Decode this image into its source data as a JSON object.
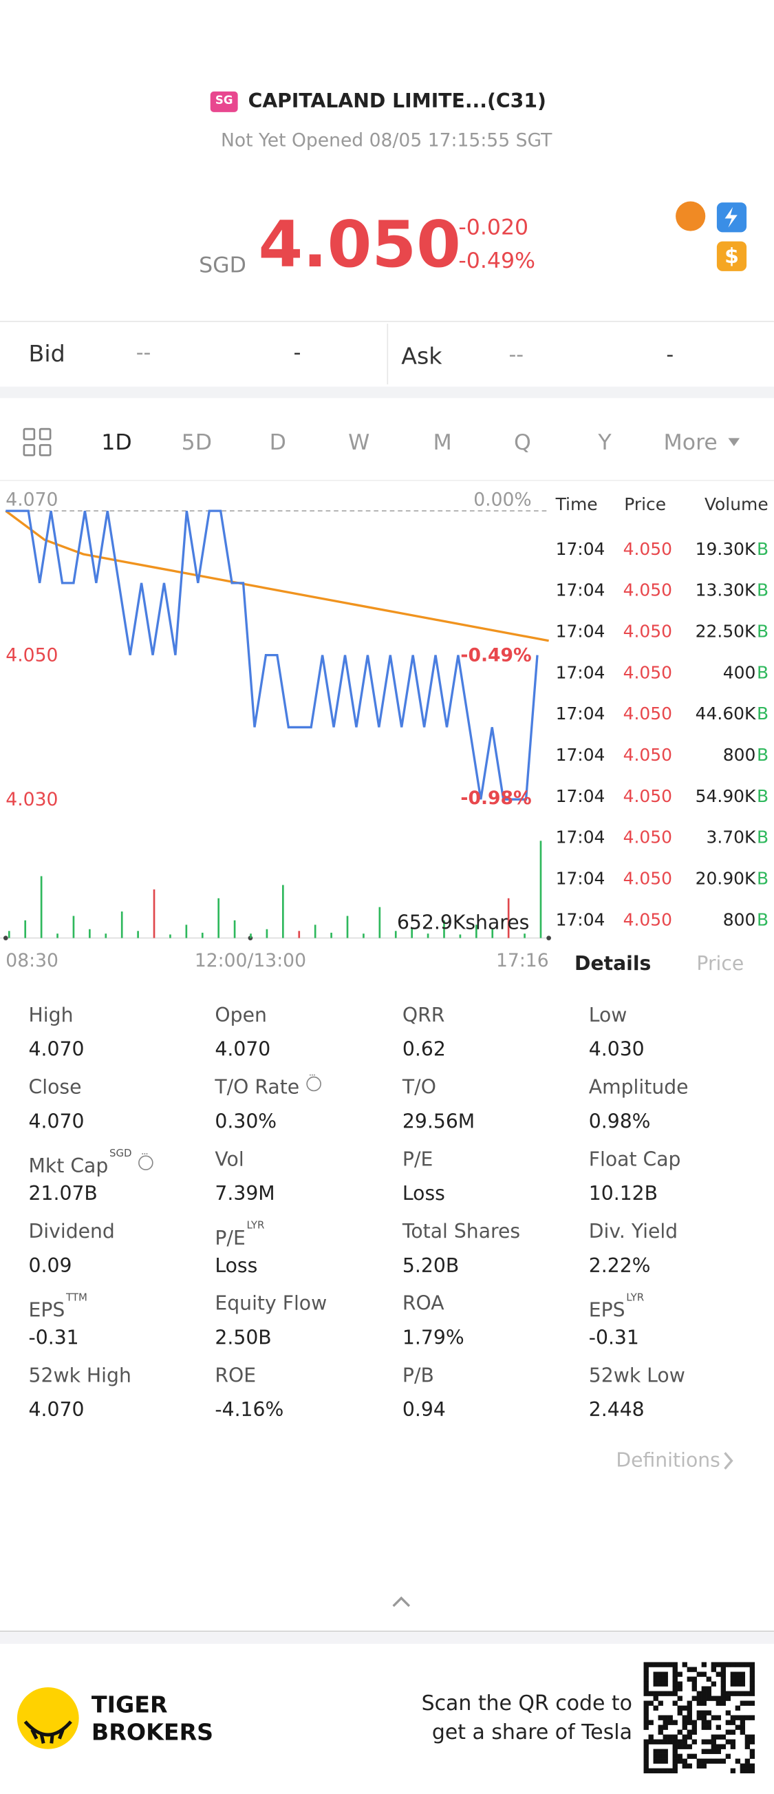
{
  "header": {
    "badge": "SG",
    "title": "CAPITALAND LIMITE...(C31)",
    "status": "Not Yet Opened 08/05 17:15:55 SGT"
  },
  "quote": {
    "currency": "SGD",
    "price": "4.050",
    "change": "-0.020",
    "change_pct": "-0.49%"
  },
  "order_book": {
    "bid": {
      "label": "Bid",
      "price": "--",
      "size": "-"
    },
    "ask": {
      "label": "Ask",
      "price": "--",
      "size": "-"
    }
  },
  "period_tabs": [
    "1D",
    "5D",
    "D",
    "W",
    "M",
    "Q",
    "Y",
    "More"
  ],
  "chart_data": {
    "type": "line",
    "ylim": [
      4.026,
      4.072
    ],
    "yticks": [
      {
        "value": 4.07,
        "label": "4.070"
      },
      {
        "value": 4.05,
        "label": "4.050"
      },
      {
        "value": 4.03,
        "label": "4.030"
      }
    ],
    "y2lim": [
      -1.081,
      0.049
    ],
    "y2ticks": [
      {
        "value": 0,
        "label": "0.00%"
      },
      {
        "value": -0.49,
        "label": "-0.49%"
      },
      {
        "value": -0.98,
        "label": "-0.98%"
      }
    ],
    "x_labels": [
      "08:30",
      "12:00/13:00",
      "17:16"
    ],
    "series": [
      {
        "color": "#4a7ee0",
        "values": [
          4.07,
          4.07,
          4.07,
          4.06,
          4.07,
          4.06,
          4.06,
          4.07,
          4.06,
          4.07,
          4.06,
          4.05,
          4.06,
          4.05,
          4.06,
          4.05,
          4.07,
          4.06,
          4.07,
          4.07,
          4.06,
          4.06,
          4.04,
          4.05,
          4.05,
          4.04,
          4.04,
          4.04,
          4.05,
          4.04,
          4.05,
          4.04,
          4.05,
          4.04,
          4.05,
          4.04,
          4.05,
          4.04,
          4.05,
          4.04,
          4.05,
          4.04,
          4.03,
          4.04,
          4.03,
          4.03,
          4.03,
          4.05
        ]
      },
      {
        "color": "#f0931e",
        "values": [
          4.07,
          4.066,
          4.064,
          4.063,
          4.062,
          4.061,
          4.06,
          4.059,
          4.058,
          4.057,
          4.056,
          4.055,
          4.054,
          4.053,
          4.052
        ]
      }
    ],
    "volume": {
      "label": "652.9Kshares",
      "values": [
        8,
        20,
        70,
        5,
        25,
        10,
        5,
        30,
        8,
        55,
        4,
        15,
        6,
        45,
        20,
        5,
        10,
        60,
        8,
        15,
        6,
        25,
        5,
        35,
        8,
        12,
        5,
        20,
        4,
        15,
        10,
        45,
        5,
        110
      ],
      "colors": [
        "#2eb85c",
        "#2eb85c",
        "#2eb85c",
        "#2eb85c",
        "#2eb85c",
        "#2eb85c",
        "#2eb85c",
        "#2eb85c",
        "#2eb85c",
        "#e0474c",
        "#2eb85c",
        "#2eb85c",
        "#2eb85c",
        "#2eb85c",
        "#2eb85c",
        "#2eb85c",
        "#2eb85c",
        "#2eb85c",
        "#e0474c",
        "#2eb85c",
        "#2eb85c",
        "#2eb85c",
        "#2eb85c",
        "#2eb85c",
        "#2eb85c",
        "#2eb85c",
        "#2eb85c",
        "#2eb85c",
        "#2eb85c",
        "#2eb85c",
        "#2eb85c",
        "#e0474c",
        "#2eb85c",
        "#2eb85c"
      ]
    }
  },
  "trades": {
    "header": [
      "Time",
      "Price",
      "Volume"
    ],
    "rows": [
      [
        "17:04",
        "4.050",
        "19.30K",
        "B"
      ],
      [
        "17:04",
        "4.050",
        "13.30K",
        "B"
      ],
      [
        "17:04",
        "4.050",
        "22.50K",
        "B"
      ],
      [
        "17:04",
        "4.050",
        "400",
        "B"
      ],
      [
        "17:04",
        "4.050",
        "44.60K",
        "B"
      ],
      [
        "17:04",
        "4.050",
        "800",
        "B"
      ],
      [
        "17:04",
        "4.050",
        "54.90K",
        "B"
      ],
      [
        "17:04",
        "4.050",
        "3.70K",
        "B"
      ],
      [
        "17:04",
        "4.050",
        "20.90K",
        "B"
      ],
      [
        "17:04",
        "4.050",
        "800",
        "B"
      ]
    ]
  },
  "detail_tabs": [
    "Details",
    "Price"
  ],
  "stats": [
    {
      "label": "High",
      "value": "4.070"
    },
    {
      "label": "Open",
      "value": "4.070"
    },
    {
      "label": "QRR",
      "value": "0.62"
    },
    {
      "label": "Low",
      "value": "4.030"
    },
    {
      "label": "Close",
      "value": "4.070"
    },
    {
      "label": "T/O Rate",
      "value": "0.30%",
      "info": true
    },
    {
      "label": "T/O",
      "value": "29.56M"
    },
    {
      "label": "Amplitude",
      "value": "0.98%"
    },
    {
      "label": "Mkt Cap",
      "sup": "SGD",
      "value": "21.07B",
      "info": true
    },
    {
      "label": "Vol",
      "value": "7.39M"
    },
    {
      "label": "P/E",
      "value": "Loss"
    },
    {
      "label": "Float Cap",
      "value": "10.12B"
    },
    {
      "label": "Dividend",
      "value": "0.09"
    },
    {
      "label": "P/E",
      "sup": "LYR",
      "value": "Loss"
    },
    {
      "label": "Total Shares",
      "value": "5.20B"
    },
    {
      "label": "Div. Yield",
      "value": "2.22%"
    },
    {
      "label": "EPS",
      "sup": "TTM",
      "value": "-0.31"
    },
    {
      "label": "Equity Flow",
      "value": "2.50B"
    },
    {
      "label": "ROA",
      "value": "1.79%"
    },
    {
      "label": "EPS",
      "sup": "LYR",
      "value": "-0.31"
    },
    {
      "label": "52wk High",
      "value": "4.070"
    },
    {
      "label": "ROE",
      "value": "-4.16%"
    },
    {
      "label": "P/B",
      "value": "0.94"
    },
    {
      "label": "52wk Low",
      "value": "2.448"
    }
  ],
  "definitions": "Definitions",
  "footer": {
    "brand": [
      "TIGER",
      "BROKERS"
    ],
    "promo": [
      "Scan the QR code to",
      "get a share of Tesla"
    ]
  }
}
